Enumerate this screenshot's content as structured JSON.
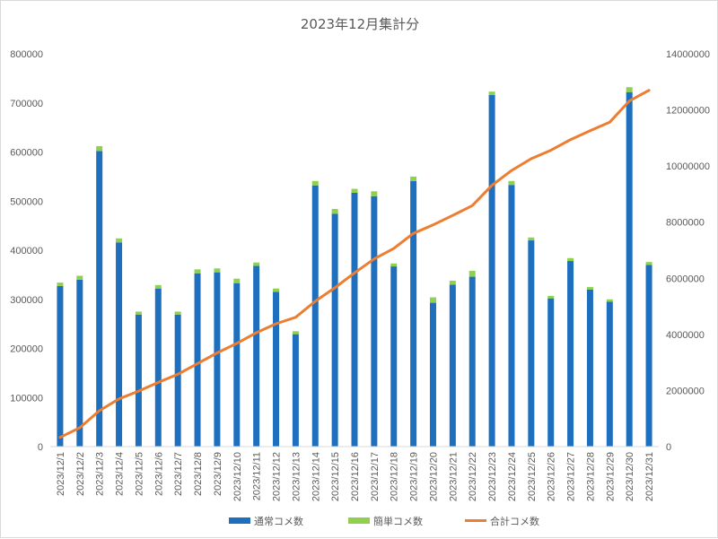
{
  "chart_data": {
    "type": "bar",
    "title": "2023年12月集計分",
    "categories": [
      "2023/12/1",
      "2023/12/2",
      "2023/12/3",
      "2023/12/4",
      "2023/12/5",
      "2023/12/6",
      "2023/12/7",
      "2023/12/8",
      "2023/12/9",
      "2023/12/10",
      "2023/12/11",
      "2023/12/12",
      "2023/12/13",
      "2023/12/14",
      "2023/12/15",
      "2023/12/16",
      "2023/12/17",
      "2023/12/18",
      "2023/12/19",
      "2023/12/20",
      "2023/12/21",
      "2023/12/22",
      "2023/12/23",
      "2023/12/24",
      "2023/12/25",
      "2023/12/26",
      "2023/12/27",
      "2023/12/28",
      "2023/12/29",
      "2023/12/30",
      "2023/12/31"
    ],
    "series": [
      {
        "name": "通常コメ数",
        "kind": "bar",
        "stack": "main",
        "axis": "left",
        "color": "#1f6fbf",
        "values": [
          327000,
          340000,
          602000,
          416000,
          269000,
          322000,
          269000,
          353000,
          355000,
          333000,
          368000,
          315000,
          229000,
          532000,
          474000,
          517000,
          510000,
          367000,
          541000,
          293000,
          330000,
          346000,
          716000,
          533000,
          420000,
          302000,
          378000,
          320000,
          295000,
          722000,
          370000
        ]
      },
      {
        "name": "簡単コメ数",
        "kind": "bar",
        "stack": "main",
        "axis": "left",
        "color": "#8fd14f",
        "values": [
          7000,
          8000,
          10000,
          8000,
          6000,
          7000,
          6000,
          8000,
          8000,
          9000,
          7000,
          7000,
          6000,
          9000,
          10000,
          8000,
          10000,
          6000,
          9000,
          11000,
          8000,
          12000,
          7000,
          8000,
          6000,
          5000,
          6000,
          5000,
          5000,
          10000,
          6000
        ]
      },
      {
        "name": "合計コメ数",
        "kind": "line",
        "axis": "right",
        "color": "#ed7d31",
        "values": [
          330000,
          670000,
          1280000,
          1700000,
          1980000,
          2290000,
          2580000,
          2960000,
          3340000,
          3680000,
          4060000,
          4380000,
          4610000,
          5180000,
          5660000,
          6190000,
          6690000,
          7060000,
          7600000,
          7900000,
          8240000,
          8590000,
          9310000,
          9840000,
          10260000,
          10560000,
          10940000,
          11260000,
          11560000,
          12320000,
          12700000
        ]
      }
    ],
    "ylim": [
      0,
      800000
    ],
    "y_ticks": [
      "0",
      "100000",
      "200000",
      "300000",
      "400000",
      "500000",
      "600000",
      "700000",
      "800000"
    ],
    "y2lim": [
      0,
      14000000
    ],
    "y2_ticks": [
      "0",
      "2000000",
      "4000000",
      "6000000",
      "8000000",
      "10000000",
      "12000000",
      "14000000"
    ],
    "grid": false,
    "legend": "bottom"
  }
}
